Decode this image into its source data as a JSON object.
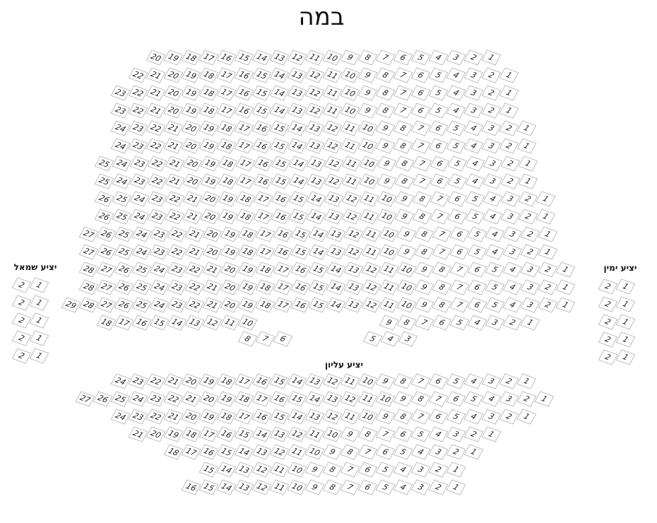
{
  "stage_label": "במה",
  "sections": {
    "main": {
      "label": "",
      "rows": [
        [
          [
            20,
            19,
            18,
            17,
            16,
            15,
            14,
            13,
            12,
            11,
            10,
            9,
            8,
            7,
            6,
            5,
            4,
            3,
            2,
            1
          ]
        ],
        [
          [
            22,
            21,
            20,
            19,
            18,
            17,
            16,
            15,
            14,
            13,
            12,
            11,
            10,
            9,
            8,
            7,
            6,
            5,
            4,
            3,
            2,
            1
          ]
        ],
        [
          [
            23,
            22,
            21,
            20,
            19,
            18,
            17,
            16,
            15,
            14,
            13,
            12,
            11,
            10,
            9,
            8,
            7,
            6,
            5,
            4,
            3,
            2,
            1
          ]
        ],
        [
          [
            23,
            22,
            21,
            20,
            19,
            18,
            17,
            16,
            15,
            14,
            13,
            12,
            11,
            10,
            9,
            8,
            7,
            6,
            5,
            4,
            3,
            2,
            1
          ]
        ],
        [
          [
            24,
            23,
            22,
            21,
            20,
            19,
            18,
            17,
            16,
            15,
            14,
            13,
            12,
            11,
            10,
            9,
            8,
            7,
            6,
            5,
            4,
            3,
            2,
            1
          ]
        ],
        [
          [
            24,
            23,
            22,
            21,
            20,
            19,
            18,
            17,
            16,
            15,
            14,
            13,
            12,
            11,
            10,
            9,
            8,
            7,
            6,
            5,
            4,
            3,
            2,
            1
          ]
        ],
        [
          [
            25,
            24,
            23,
            22,
            21,
            20,
            19,
            18,
            17,
            16,
            15,
            14,
            13,
            12,
            11,
            10,
            9,
            8,
            7,
            6,
            5,
            4,
            3,
            2,
            1
          ]
        ],
        [
          [
            25,
            24,
            23,
            22,
            21,
            20,
            19,
            18,
            17,
            16,
            15,
            14,
            13,
            12,
            11,
            10,
            9,
            8,
            7,
            6,
            5,
            4,
            3,
            2,
            1
          ]
        ],
        [
          [
            26,
            25,
            24,
            23,
            22,
            21,
            20,
            19,
            18,
            17,
            16,
            15,
            14,
            13,
            12,
            11,
            10,
            9,
            8,
            7,
            6,
            5,
            4,
            3,
            2,
            1
          ]
        ],
        [
          [
            26,
            25,
            24,
            23,
            22,
            21,
            20,
            19,
            18,
            17,
            16,
            15,
            14,
            13,
            12,
            11,
            10,
            9,
            8,
            7,
            6,
            5,
            4,
            3,
            2,
            1
          ]
        ],
        [
          [
            27,
            26,
            25,
            24,
            23,
            22,
            21,
            20,
            19,
            18,
            17,
            16,
            15,
            14,
            13,
            12,
            11,
            10,
            9,
            8,
            7,
            6,
            5,
            4,
            3,
            2,
            1
          ]
        ],
        [
          [
            27,
            26,
            25,
            24,
            23,
            22,
            21,
            20,
            19,
            18,
            17,
            16,
            15,
            14,
            13,
            12,
            11,
            10,
            9,
            8,
            7,
            6,
            5,
            4,
            3,
            2,
            1
          ]
        ],
        [
          [
            28,
            27,
            26,
            25,
            24,
            23,
            22,
            21,
            20,
            19,
            18,
            17,
            16,
            15,
            14,
            13,
            12,
            11,
            10,
            9,
            8,
            7,
            6,
            5,
            4,
            3,
            2,
            1
          ]
        ],
        [
          [
            28,
            27,
            26,
            25,
            24,
            23,
            22,
            21,
            20,
            19,
            18,
            17,
            16,
            15,
            14,
            13,
            12,
            11,
            10,
            9,
            8,
            7,
            6,
            5,
            4,
            3,
            2,
            1
          ]
        ],
        [
          [
            29,
            28,
            27,
            26,
            25,
            24,
            23,
            22,
            21,
            20,
            19,
            18,
            17,
            16,
            15,
            14,
            13,
            12,
            11,
            10,
            9,
            8,
            7,
            6,
            5,
            4,
            3,
            2,
            1
          ]
        ],
        [
          [
            18,
            17,
            16,
            15,
            14,
            13,
            12,
            11,
            10
          ],
          [
            9,
            8,
            7,
            6,
            5,
            4,
            3,
            2,
            1
          ]
        ],
        [
          [
            8,
            7,
            6
          ],
          [
            5,
            4,
            3
          ]
        ]
      ]
    },
    "left_balcony": {
      "label": "יציע שמאל",
      "rows": [
        [
          [
            2,
            1
          ]
        ],
        [
          [
            2,
            1
          ]
        ],
        [
          [
            2,
            1
          ]
        ],
        [
          [
            2,
            1
          ]
        ],
        [
          [
            2,
            1
          ]
        ]
      ]
    },
    "right_balcony": {
      "label": "יציע ימין",
      "rows": [
        [
          [
            2,
            1
          ]
        ],
        [
          [
            2,
            1
          ]
        ],
        [
          [
            2,
            1
          ]
        ],
        [
          [
            2,
            1
          ]
        ],
        [
          [
            2,
            1
          ]
        ]
      ]
    },
    "upper_balcony": {
      "label": "יציע עליון",
      "rows": [
        [
          [
            24,
            23,
            22,
            21,
            20,
            19,
            18,
            17,
            16,
            15,
            14,
            13,
            12,
            11,
            10,
            9,
            8,
            7,
            6,
            5,
            4,
            3,
            2,
            1
          ]
        ],
        [
          [
            27,
            26,
            25,
            24,
            23,
            22,
            21,
            20,
            19,
            18,
            17,
            16,
            15,
            14,
            13,
            12,
            11,
            10,
            9,
            8,
            7,
            6,
            5,
            4,
            3,
            2,
            1
          ]
        ],
        [
          [
            24,
            23,
            22,
            21,
            20,
            19,
            18,
            17,
            16,
            15,
            14,
            13,
            12,
            11,
            10,
            9,
            8,
            7,
            6,
            5,
            4,
            3,
            2,
            1
          ]
        ],
        [
          [
            21,
            20,
            19,
            18,
            17,
            16,
            15,
            14,
            13,
            12,
            11,
            10,
            9,
            8,
            7,
            6,
            5,
            4,
            3,
            2,
            1
          ]
        ],
        [
          [
            18,
            17,
            16,
            15,
            14,
            13,
            12,
            11,
            10,
            9,
            8,
            7,
            6,
            5,
            4,
            3,
            2,
            1
          ]
        ],
        [
          [
            15,
            14,
            13,
            12,
            11,
            10,
            9,
            8,
            7,
            6,
            5,
            4,
            3,
            2,
            1
          ]
        ],
        [
          [
            16,
            15,
            14,
            13,
            12,
            11,
            10,
            9,
            8,
            7,
            6,
            5,
            4,
            3,
            2,
            1
          ]
        ]
      ]
    }
  }
}
